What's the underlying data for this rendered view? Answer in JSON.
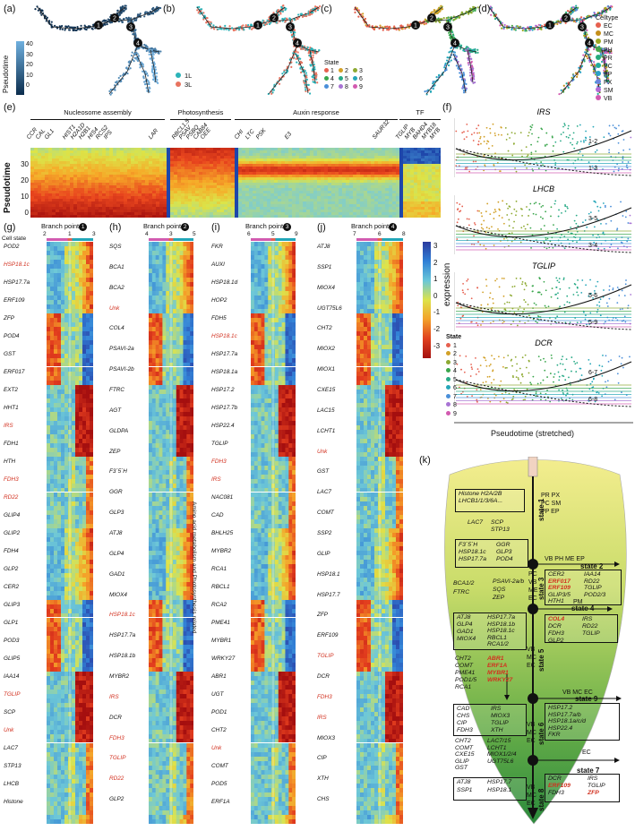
{
  "panels": {
    "a": "(a)",
    "b": "(b)",
    "c": "(c)",
    "d": "(d)",
    "e": "(e)",
    "f": "(f)",
    "g": "(g)",
    "h": "(h)",
    "i": "(i)",
    "j": "(j)",
    "k": "(k)"
  },
  "a": {
    "colorbar_title": "Pseudotime",
    "ticks": [
      "40",
      "30",
      "20",
      "10",
      "0"
    ]
  },
  "b": {
    "legend": [
      {
        "label": "1L",
        "color": "#2bb3b8"
      },
      {
        "label": "3L",
        "color": "#e8735f"
      }
    ]
  },
  "c": {
    "legend_title": "State",
    "states": [
      "1",
      "2",
      "3",
      "4",
      "5",
      "6",
      "7",
      "8",
      "9"
    ],
    "colors": [
      "#e6604f",
      "#d2a027",
      "#8da931",
      "#3aa64c",
      "#28aa86",
      "#25a6b8",
      "#4a8fd9",
      "#a874d4",
      "#d25ab0"
    ]
  },
  "d": {
    "legend_title": "Celltype",
    "types": [
      "EC",
      "MC",
      "PM",
      "PH",
      "PR",
      "PC",
      "PP",
      "PX",
      "SM",
      "VB"
    ],
    "colors": [
      "#e6604f",
      "#c58f1b",
      "#9ea922",
      "#4aa84a",
      "#28aa7a",
      "#22ab9d",
      "#2aa0c9",
      "#6b84dd",
      "#b46ad6",
      "#d25ab0"
    ]
  },
  "branch_numbers": [
    "1",
    "2",
    "3",
    "4"
  ],
  "e": {
    "groups": [
      "Nucleosome assembly",
      "Photosynthesis",
      "Auxin response",
      "TF"
    ],
    "genes_left": [
      "CCR",
      "CAL",
      "GL1",
      "HIST1",
      "H2A1D",
      "H2B1",
      "HIS4",
      "RCS2",
      "IPS"
    ],
    "genes_photo": [
      "LAR",
      "RBCL1.5",
      "PSAV",
      "PSBQ",
      "CAB84",
      "OEE"
    ],
    "genes_auxin": [
      "CHI",
      "LTC",
      "PSK",
      "E3",
      "SAUR32"
    ],
    "genes_tf": [
      "TGLIP",
      "MYB",
      "BAHD4",
      "MYB18",
      "MYB"
    ],
    "ylabel": "Pseudotime",
    "yticks": [
      "30",
      "20",
      "10",
      "0"
    ]
  },
  "f": {
    "panels": [
      {
        "title": "IRS",
        "labels": [
          "1-2",
          "1-3"
        ]
      },
      {
        "title": "LHCB",
        "labels": [
          "3-5",
          "3-4"
        ]
      },
      {
        "title": "TGLIP",
        "labels": [
          "5-6",
          "5-9"
        ]
      },
      {
        "title": "DCR",
        "labels": [
          "6-7",
          "6-8"
        ]
      }
    ],
    "ylabel": "expression",
    "xlabel": "Pseudotime (stretched)",
    "legend_title": "State",
    "states": [
      "1",
      "2",
      "3",
      "4",
      "5",
      "6",
      "7",
      "8",
      "9"
    ]
  },
  "colorbar_ticks": [
    "3",
    "2",
    "1",
    "0",
    "-1",
    "-2",
    "-3"
  ],
  "g": {
    "title": "Branch point",
    "num": "1",
    "state_label": "Cell state",
    "axis": [
      "2",
      "1",
      "3"
    ],
    "genes": [
      {
        "t": "POD2",
        "r": false
      },
      {
        "t": "HSP18.1c",
        "r": true
      },
      {
        "t": "HSP17.7a",
        "r": false
      },
      {
        "t": "ERF109",
        "r": false
      },
      {
        "t": "ZFP",
        "r": false
      },
      {
        "t": "POD4",
        "r": false
      },
      {
        "t": "GST",
        "r": false
      },
      {
        "t": "ERF017",
        "r": false
      },
      {
        "t": "EXT2",
        "r": false
      },
      {
        "t": "HHT1",
        "r": false
      },
      {
        "t": "IRS",
        "r": true
      },
      {
        "t": "FDH1",
        "r": false
      },
      {
        "t": "HTH",
        "r": false
      },
      {
        "t": "FDH3",
        "r": true
      },
      {
        "t": "RD22",
        "r": true
      },
      {
        "t": "GLIP4",
        "r": false
      },
      {
        "t": "GLIP2",
        "r": false
      },
      {
        "t": "FDH4",
        "r": false
      },
      {
        "t": "GLP2",
        "r": false
      },
      {
        "t": "CER2",
        "r": false
      },
      {
        "t": "GLIP3",
        "r": false
      },
      {
        "t": "GLP1",
        "r": false
      },
      {
        "t": "POD3",
        "r": false
      },
      {
        "t": "GLIP5",
        "r": false
      },
      {
        "t": "IAA14",
        "r": false
      },
      {
        "t": "TGLIP",
        "r": true
      },
      {
        "t": "SCP",
        "r": false
      },
      {
        "t": "Unk",
        "r": true
      },
      {
        "t": "LAC7",
        "r": false
      },
      {
        "t": "STP13",
        "r": false
      },
      {
        "t": "LHCB",
        "r": false
      },
      {
        "t": "Histone",
        "r": false
      }
    ]
  },
  "h": {
    "title": "Branch point",
    "num": "2",
    "axis": [
      "4",
      "3",
      "5"
    ],
    "side_label": "Amino acid metabolism and Photosynthesis related",
    "genes": [
      {
        "t": "SQS",
        "r": false
      },
      {
        "t": "BCA1",
        "r": false
      },
      {
        "t": "BCA2",
        "r": false
      },
      {
        "t": "Unk",
        "r": true
      },
      {
        "t": "COL4",
        "r": false
      },
      {
        "t": "PSAVI-2a",
        "r": false
      },
      {
        "t": "PSAVI-2b",
        "r": false
      },
      {
        "t": "FTRC",
        "r": false
      },
      {
        "t": "AGT",
        "r": false
      },
      {
        "t": "GLDPA",
        "r": false
      },
      {
        "t": "ZEP",
        "r": false
      },
      {
        "t": "F3´5´H",
        "r": false
      },
      {
        "t": "GGR",
        "r": false
      },
      {
        "t": "GLP3",
        "r": false
      },
      {
        "t": "ATJ8",
        "r": false
      },
      {
        "t": "GLP4",
        "r": false
      },
      {
        "t": "GAD1",
        "r": false
      },
      {
        "t": "MIOX4",
        "r": false
      },
      {
        "t": "HSP18.1c",
        "r": true
      },
      {
        "t": "HSP17.7a",
        "r": false
      },
      {
        "t": "HSP18.1b",
        "r": false
      },
      {
        "t": "MYBR2",
        "r": false
      },
      {
        "t": "IRS",
        "r": true
      },
      {
        "t": "DCR",
        "r": false
      },
      {
        "t": "FDH3",
        "r": true
      },
      {
        "t": "TGLIP",
        "r": true
      },
      {
        "t": "RD22",
        "r": true
      },
      {
        "t": "GLP2",
        "r": false
      }
    ]
  },
  "i": {
    "title": "Branch point",
    "num": "3",
    "axis": [
      "6",
      "5",
      "9"
    ],
    "genes": [
      {
        "t": "FKR",
        "r": false
      },
      {
        "t": "AUXI",
        "r": false
      },
      {
        "t": "HSP18.1d",
        "r": false
      },
      {
        "t": "HOP2",
        "r": false
      },
      {
        "t": "FDH5",
        "r": false
      },
      {
        "t": "HSP18.1c",
        "r": true
      },
      {
        "t": "HSP17.7a",
        "r": false
      },
      {
        "t": "HSP18.1a",
        "r": false
      },
      {
        "t": "HSP17.2",
        "r": false
      },
      {
        "t": "HSP17.7b",
        "r": false
      },
      {
        "t": "HSP22.4",
        "r": false
      },
      {
        "t": "TGLIP",
        "r": false
      },
      {
        "t": "FDH3",
        "r": true
      },
      {
        "t": "IRS",
        "r": true
      },
      {
        "t": "NAC081",
        "r": false
      },
      {
        "t": "CAD",
        "r": false
      },
      {
        "t": "BHLH25",
        "r": false
      },
      {
        "t": "MYBR2",
        "r": false
      },
      {
        "t": "RCA1",
        "r": false
      },
      {
        "t": "RBCL1",
        "r": false
      },
      {
        "t": "RCA2",
        "r": false
      },
      {
        "t": "PME41",
        "r": false
      },
      {
        "t": "MYBR1",
        "r": false
      },
      {
        "t": "WRKY27",
        "r": false
      },
      {
        "t": "ABR1",
        "r": false
      },
      {
        "t": "UGT",
        "r": false
      },
      {
        "t": "POD1",
        "r": false
      },
      {
        "t": "CHT2",
        "r": false
      },
      {
        "t": "Unk",
        "r": true
      },
      {
        "t": "COMT",
        "r": false
      },
      {
        "t": "POD5",
        "r": false
      },
      {
        "t": "ERF1A",
        "r": false
      }
    ]
  },
  "j": {
    "title": "Branch point",
    "num": "4",
    "axis": [
      "7",
      "6",
      "8"
    ],
    "genes": [
      {
        "t": "ATJ8",
        "r": false
      },
      {
        "t": "SSP1",
        "r": false
      },
      {
        "t": "MIOX4",
        "r": false
      },
      {
        "t": "UGT75L6",
        "r": false
      },
      {
        "t": "CHT2",
        "r": false
      },
      {
        "t": "MIOX2",
        "r": false
      },
      {
        "t": "MIOX1",
        "r": false
      },
      {
        "t": "CXE15",
        "r": false
      },
      {
        "t": "LAC15",
        "r": false
      },
      {
        "t": "LCHT1",
        "r": false
      },
      {
        "t": "Unk",
        "r": true
      },
      {
        "t": "GST",
        "r": false
      },
      {
        "t": "LAC7",
        "r": false
      },
      {
        "t": "COMT",
        "r": false
      },
      {
        "t": "SSP2",
        "r": false
      },
      {
        "t": "GLIP",
        "r": false
      },
      {
        "t": "HSP18.1",
        "r": false
      },
      {
        "t": "HSP17.7",
        "r": false
      },
      {
        "t": "ZFP",
        "r": false
      },
      {
        "t": "ERF109",
        "r": false
      },
      {
        "t": "TGLIP",
        "r": true
      },
      {
        "t": "DCR",
        "r": false
      },
      {
        "t": "FDH3",
        "r": true
      },
      {
        "t": "IRS",
        "r": true
      },
      {
        "t": "MIOX3",
        "r": false
      },
      {
        "t": "CIP",
        "r": false
      },
      {
        "t": "XTH",
        "r": false
      },
      {
        "t": "CHS",
        "r": false
      }
    ]
  },
  "k": {
    "state1": "state 1",
    "top_box": [
      "Histone H2A/2B",
      "LHCB1/1/3/6A..."
    ],
    "top_types": [
      "PR  PX",
      "PC  SM",
      "PP  EP"
    ],
    "lac_row": [
      "LAC7",
      "SCP",
      "STP13"
    ],
    "state2": "state 2",
    "state2_types": "VB PH ME EP",
    "box3": [
      "F3´5´H",
      "HSP18.1c",
      "HSP17.7a",
      "GGR",
      "GLP3",
      "POD4"
    ],
    "state3": "state 3",
    "state3_types": [
      "PC",
      "VB",
      "ME",
      "EC"
    ],
    "box2": [
      "CER2",
      "ERF017",
      "ERF109",
      "GLIP3/5",
      "HTH1",
      "IAA14",
      "RD22",
      "TGLIP",
      "POD2/3"
    ],
    "mid_list": [
      "BCA1/2",
      "FTRC",
      "PSAVI-2a/b",
      "SQS",
      "ZEP"
    ],
    "state4_types": "PM",
    "state4": "state 4",
    "box4": [
      "COL4",
      "DCR",
      "FDH3",
      "GLP2",
      "IRS",
      "RD22",
      "TGLIP"
    ],
    "state5": "state 5",
    "state5_types": [
      "VB",
      "MC",
      "EC"
    ],
    "box5": [
      "ATJ8",
      "GLP4",
      "GAD1",
      "MIOX4",
      "HSP17.7a",
      "HSP18.1b",
      "HSP18.1c",
      "RBCL1",
      "RCA1/2"
    ],
    "list5b": [
      "CHT2",
      "COMT",
      "PME41",
      "POD1/5",
      "RCA1",
      "ABR1",
      "ERF1A",
      "MYBR1",
      "WRKY27"
    ],
    "state9_types": "VB  MC  EC",
    "state9": "state 9",
    "box9": [
      "HSP17.2",
      "HSP17.7a/b",
      "HSP18.1a/c/d",
      "HSP22.4",
      "FKR"
    ],
    "state6": "state 6",
    "state6_types": [
      "VB",
      "MC",
      "EC"
    ],
    "box6": [
      "CAD",
      "CHS",
      "CIP",
      "FDH3",
      "IRS",
      "MIOX3",
      "TGLIP",
      "XTH"
    ],
    "list6b": [
      "CHT2",
      "COMT",
      "CXE15",
      "GLIP",
      "GST",
      "LAC7/15",
      "LCHT1",
      "MIOX1/2/4",
      "UGT75L6"
    ],
    "state7_types": "EC",
    "state7": "state 7",
    "box7": [
      "DCR",
      "ERF109",
      "FDH3",
      "IRS",
      "TGLIP",
      "ZFP"
    ],
    "state8": "state 8",
    "state8_types": [
      "VB",
      "MC",
      "EC"
    ],
    "box8": [
      "ATJ8",
      "SSP1",
      "HSP17.7",
      "HSP18.1"
    ]
  }
}
